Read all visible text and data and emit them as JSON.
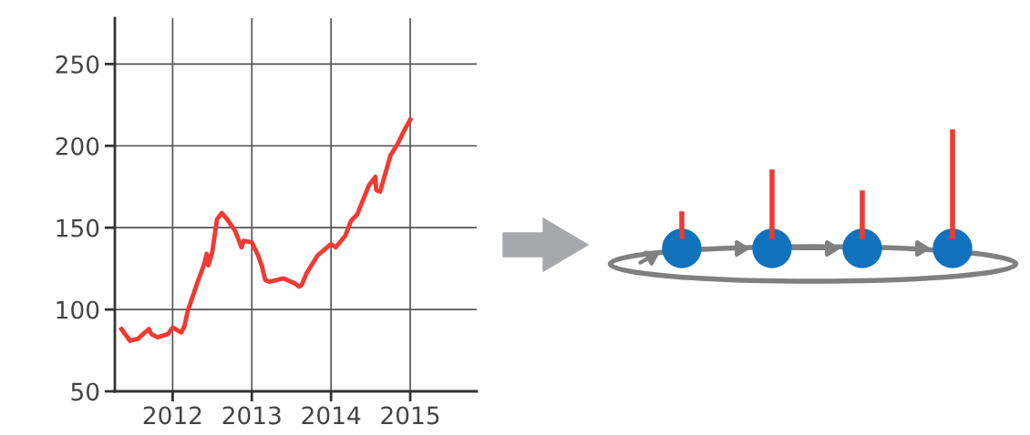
{
  "chart_data": {
    "type": "line",
    "x": [
      2011.354,
      2011.46,
      2011.56,
      2011.65,
      2011.7,
      2011.73,
      2011.81,
      2011.94,
      2012.0,
      2012.11,
      2012.15,
      2012.19,
      2012.31,
      2012.4,
      2012.43,
      2012.45,
      2012.5,
      2012.56,
      2012.62,
      2012.69,
      2012.79,
      2012.87,
      2012.9,
      2013.0,
      2013.08,
      2013.13,
      2013.17,
      2013.22,
      2013.4,
      2013.54,
      2013.6,
      2013.63,
      2013.69,
      2013.83,
      2014.0,
      2014.06,
      2014.18,
      2014.25,
      2014.33,
      2014.48,
      2014.56,
      2014.57,
      2014.62,
      2014.65,
      2014.75,
      2014.85,
      2014.92,
      2015.0
    ],
    "series": [
      {
        "color": "#ee3b33",
        "values": [
          88,
          81,
          82,
          86,
          88,
          85,
          83,
          85,
          89,
          86,
          90,
          99,
          116,
          128,
          134,
          127,
          135,
          155,
          159,
          155,
          148,
          138,
          142,
          141,
          133,
          126,
          118,
          117,
          119,
          116,
          114,
          115,
          122,
          133,
          140,
          138,
          145,
          154,
          158,
          176,
          181,
          173,
          172,
          177,
          194,
          202,
          209,
          216
        ]
      }
    ],
    "xlim": [
      2011.27,
      2015.84
    ],
    "ylim": [
      50,
      278
    ],
    "xticks": [
      2012,
      2013,
      2014,
      2015
    ],
    "yticks": [
      50,
      100,
      150,
      200,
      250
    ],
    "grid": true,
    "marker": "none",
    "line_style": "solid"
  }
}
